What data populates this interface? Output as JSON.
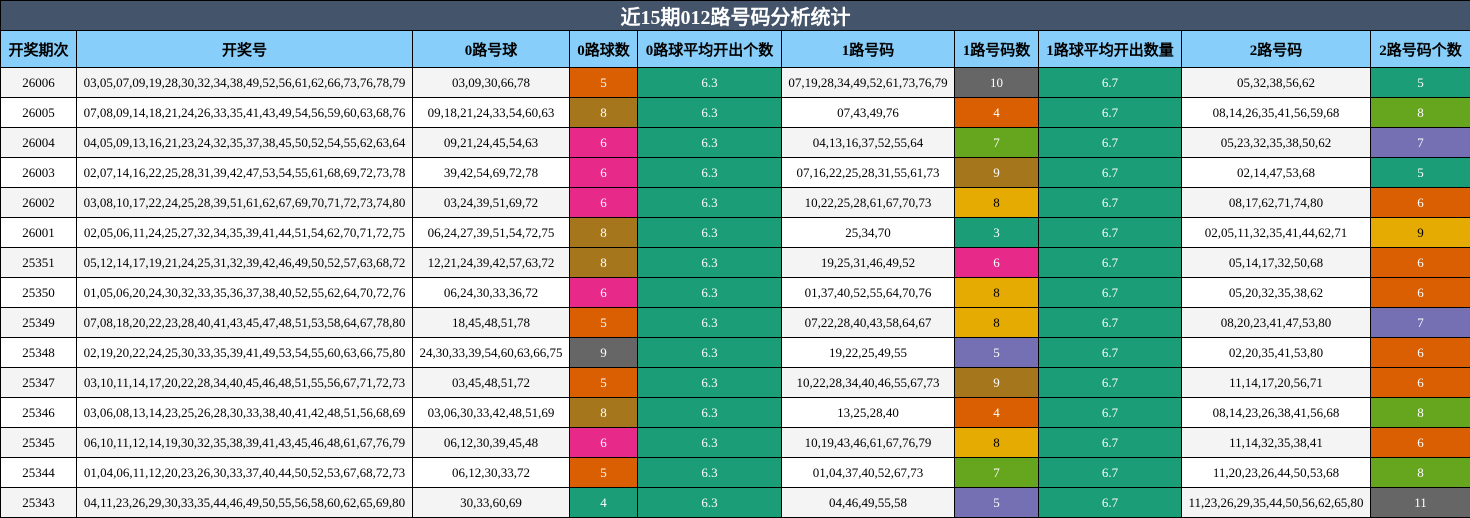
{
  "title": "近15期012路号码分析统计",
  "headers": [
    "开奖期次",
    "开奖号",
    "0路号球",
    "0路球数",
    "0路球平均开出个数",
    "1路号码",
    "1路号码数",
    "1路球平均开出数量",
    "2路号码",
    "2路号码个数"
  ],
  "palette": {
    "teal": "#1b9e77",
    "orange": "#d95f02",
    "purple": "#7570b3",
    "pink": "#e7298a",
    "lime": "#66a61e",
    "yellow": "#e6ab02",
    "brown": "#a6761d",
    "gray": "#666666"
  },
  "rows": [
    {
      "period": "26006",
      "numbers": "03,05,07,09,19,28,30,32,34,38,49,52,56,61,62,66,73,76,78,79",
      "zero": "03,09,30,66,78",
      "zero_count": "5",
      "zero_color": "orange",
      "zero_avg": "6.3",
      "one": "07,19,28,34,49,52,61,73,76,79",
      "one_count": "10",
      "one_color": "gray",
      "one_avg": "6.7",
      "two": "05,32,38,56,62",
      "two_count": "5",
      "two_color": "teal"
    },
    {
      "period": "26005",
      "numbers": "07,08,09,14,18,21,24,26,33,35,41,43,49,54,56,59,60,63,68,76",
      "zero": "09,18,21,24,33,54,60,63",
      "zero_count": "8",
      "zero_color": "brown",
      "zero_avg": "6.3",
      "one": "07,43,49,76",
      "one_count": "4",
      "one_color": "orange",
      "one_avg": "6.7",
      "two": "08,14,26,35,41,56,59,68",
      "two_count": "8",
      "two_color": "lime"
    },
    {
      "period": "26004",
      "numbers": "04,05,09,13,16,21,23,24,32,35,37,38,45,50,52,54,55,62,63,64",
      "zero": "09,21,24,45,54,63",
      "zero_count": "6",
      "zero_color": "pink",
      "zero_avg": "6.3",
      "one": "04,13,16,37,52,55,64",
      "one_count": "7",
      "one_color": "lime",
      "one_avg": "6.7",
      "two": "05,23,32,35,38,50,62",
      "two_count": "7",
      "two_color": "purple"
    },
    {
      "period": "26003",
      "numbers": "02,07,14,16,22,25,28,31,39,42,47,53,54,55,61,68,69,72,73,78",
      "zero": "39,42,54,69,72,78",
      "zero_count": "6",
      "zero_color": "pink",
      "zero_avg": "6.3",
      "one": "07,16,22,25,28,31,55,61,73",
      "one_count": "9",
      "one_color": "brown",
      "one_avg": "6.7",
      "two": "02,14,47,53,68",
      "two_count": "5",
      "two_color": "teal"
    },
    {
      "period": "26002",
      "numbers": "03,08,10,17,22,24,25,28,39,51,61,62,67,69,70,71,72,73,74,80",
      "zero": "03,24,39,51,69,72",
      "zero_count": "6",
      "zero_color": "pink",
      "zero_avg": "6.3",
      "one": "10,22,25,28,61,67,70,73",
      "one_count": "8",
      "one_color": "yellow",
      "one_avg": "6.7",
      "two": "08,17,62,71,74,80",
      "two_count": "6",
      "two_color": "orange"
    },
    {
      "period": "26001",
      "numbers": "02,05,06,11,24,25,27,32,34,35,39,41,44,51,54,62,70,71,72,75",
      "zero": "06,24,27,39,51,54,72,75",
      "zero_count": "8",
      "zero_color": "brown",
      "zero_avg": "6.3",
      "one": "25,34,70",
      "one_count": "3",
      "one_color": "teal",
      "one_avg": "6.7",
      "two": "02,05,11,32,35,41,44,62,71",
      "two_count": "9",
      "two_color": "yellow"
    },
    {
      "period": "25351",
      "numbers": "05,12,14,17,19,21,24,25,31,32,39,42,46,49,50,52,57,63,68,72",
      "zero": "12,21,24,39,42,57,63,72",
      "zero_count": "8",
      "zero_color": "brown",
      "zero_avg": "6.3",
      "one": "19,25,31,46,49,52",
      "one_count": "6",
      "one_color": "pink",
      "one_avg": "6.7",
      "two": "05,14,17,32,50,68",
      "two_count": "6",
      "two_color": "orange"
    },
    {
      "period": "25350",
      "numbers": "01,05,06,20,24,30,32,33,35,36,37,38,40,52,55,62,64,70,72,76",
      "zero": "06,24,30,33,36,72",
      "zero_count": "6",
      "zero_color": "pink",
      "zero_avg": "6.3",
      "one": "01,37,40,52,55,64,70,76",
      "one_count": "8",
      "one_color": "yellow",
      "one_avg": "6.7",
      "two": "05,20,32,35,38,62",
      "two_count": "6",
      "two_color": "orange"
    },
    {
      "period": "25349",
      "numbers": "07,08,18,20,22,23,28,40,41,43,45,47,48,51,53,58,64,67,78,80",
      "zero": "18,45,48,51,78",
      "zero_count": "5",
      "zero_color": "orange",
      "zero_avg": "6.3",
      "one": "07,22,28,40,43,58,64,67",
      "one_count": "8",
      "one_color": "yellow",
      "one_avg": "6.7",
      "two": "08,20,23,41,47,53,80",
      "two_count": "7",
      "two_color": "purple"
    },
    {
      "period": "25348",
      "numbers": "02,19,20,22,24,25,30,33,35,39,41,49,53,54,55,60,63,66,75,80",
      "zero": "24,30,33,39,54,60,63,66,75",
      "zero_count": "9",
      "zero_color": "gray",
      "zero_avg": "6.3",
      "one": "19,22,25,49,55",
      "one_count": "5",
      "one_color": "purple",
      "one_avg": "6.7",
      "two": "02,20,35,41,53,80",
      "two_count": "6",
      "two_color": "orange"
    },
    {
      "period": "25347",
      "numbers": "03,10,11,14,17,20,22,28,34,40,45,46,48,51,55,56,67,71,72,73",
      "zero": "03,45,48,51,72",
      "zero_count": "5",
      "zero_color": "orange",
      "zero_avg": "6.3",
      "one": "10,22,28,34,40,46,55,67,73",
      "one_count": "9",
      "one_color": "brown",
      "one_avg": "6.7",
      "two": "11,14,17,20,56,71",
      "two_count": "6",
      "two_color": "orange"
    },
    {
      "period": "25346",
      "numbers": "03,06,08,13,14,23,25,26,28,30,33,38,40,41,42,48,51,56,68,69",
      "zero": "03,06,30,33,42,48,51,69",
      "zero_count": "8",
      "zero_color": "brown",
      "zero_avg": "6.3",
      "one": "13,25,28,40",
      "one_count": "4",
      "one_color": "orange",
      "one_avg": "6.7",
      "two": "08,14,23,26,38,41,56,68",
      "two_count": "8",
      "two_color": "lime"
    },
    {
      "period": "25345",
      "numbers": "06,10,11,12,14,19,30,32,35,38,39,41,43,45,46,48,61,67,76,79",
      "zero": "06,12,30,39,45,48",
      "zero_count": "6",
      "zero_color": "pink",
      "zero_avg": "6.3",
      "one": "10,19,43,46,61,67,76,79",
      "one_count": "8",
      "one_color": "yellow",
      "one_avg": "6.7",
      "two": "11,14,32,35,38,41",
      "two_count": "6",
      "two_color": "orange"
    },
    {
      "period": "25344",
      "numbers": "01,04,06,11,12,20,23,26,30,33,37,40,44,50,52,53,67,68,72,73",
      "zero": "06,12,30,33,72",
      "zero_count": "5",
      "zero_color": "orange",
      "zero_avg": "6.3",
      "one": "01,04,37,40,52,67,73",
      "one_count": "7",
      "one_color": "lime",
      "one_avg": "6.7",
      "two": "11,20,23,26,44,50,53,68",
      "two_count": "8",
      "two_color": "lime"
    },
    {
      "period": "25343",
      "numbers": "04,11,23,26,29,30,33,35,44,46,49,50,55,56,58,60,62,65,69,80",
      "zero": "30,33,60,69",
      "zero_count": "4",
      "zero_color": "teal",
      "zero_avg": "6.3",
      "one": "04,46,49,55,58",
      "one_count": "5",
      "one_color": "purple",
      "one_avg": "6.7",
      "two": "11,23,26,29,35,44,50,56,62,65,80",
      "two_count": "11",
      "two_color": "gray"
    }
  ]
}
